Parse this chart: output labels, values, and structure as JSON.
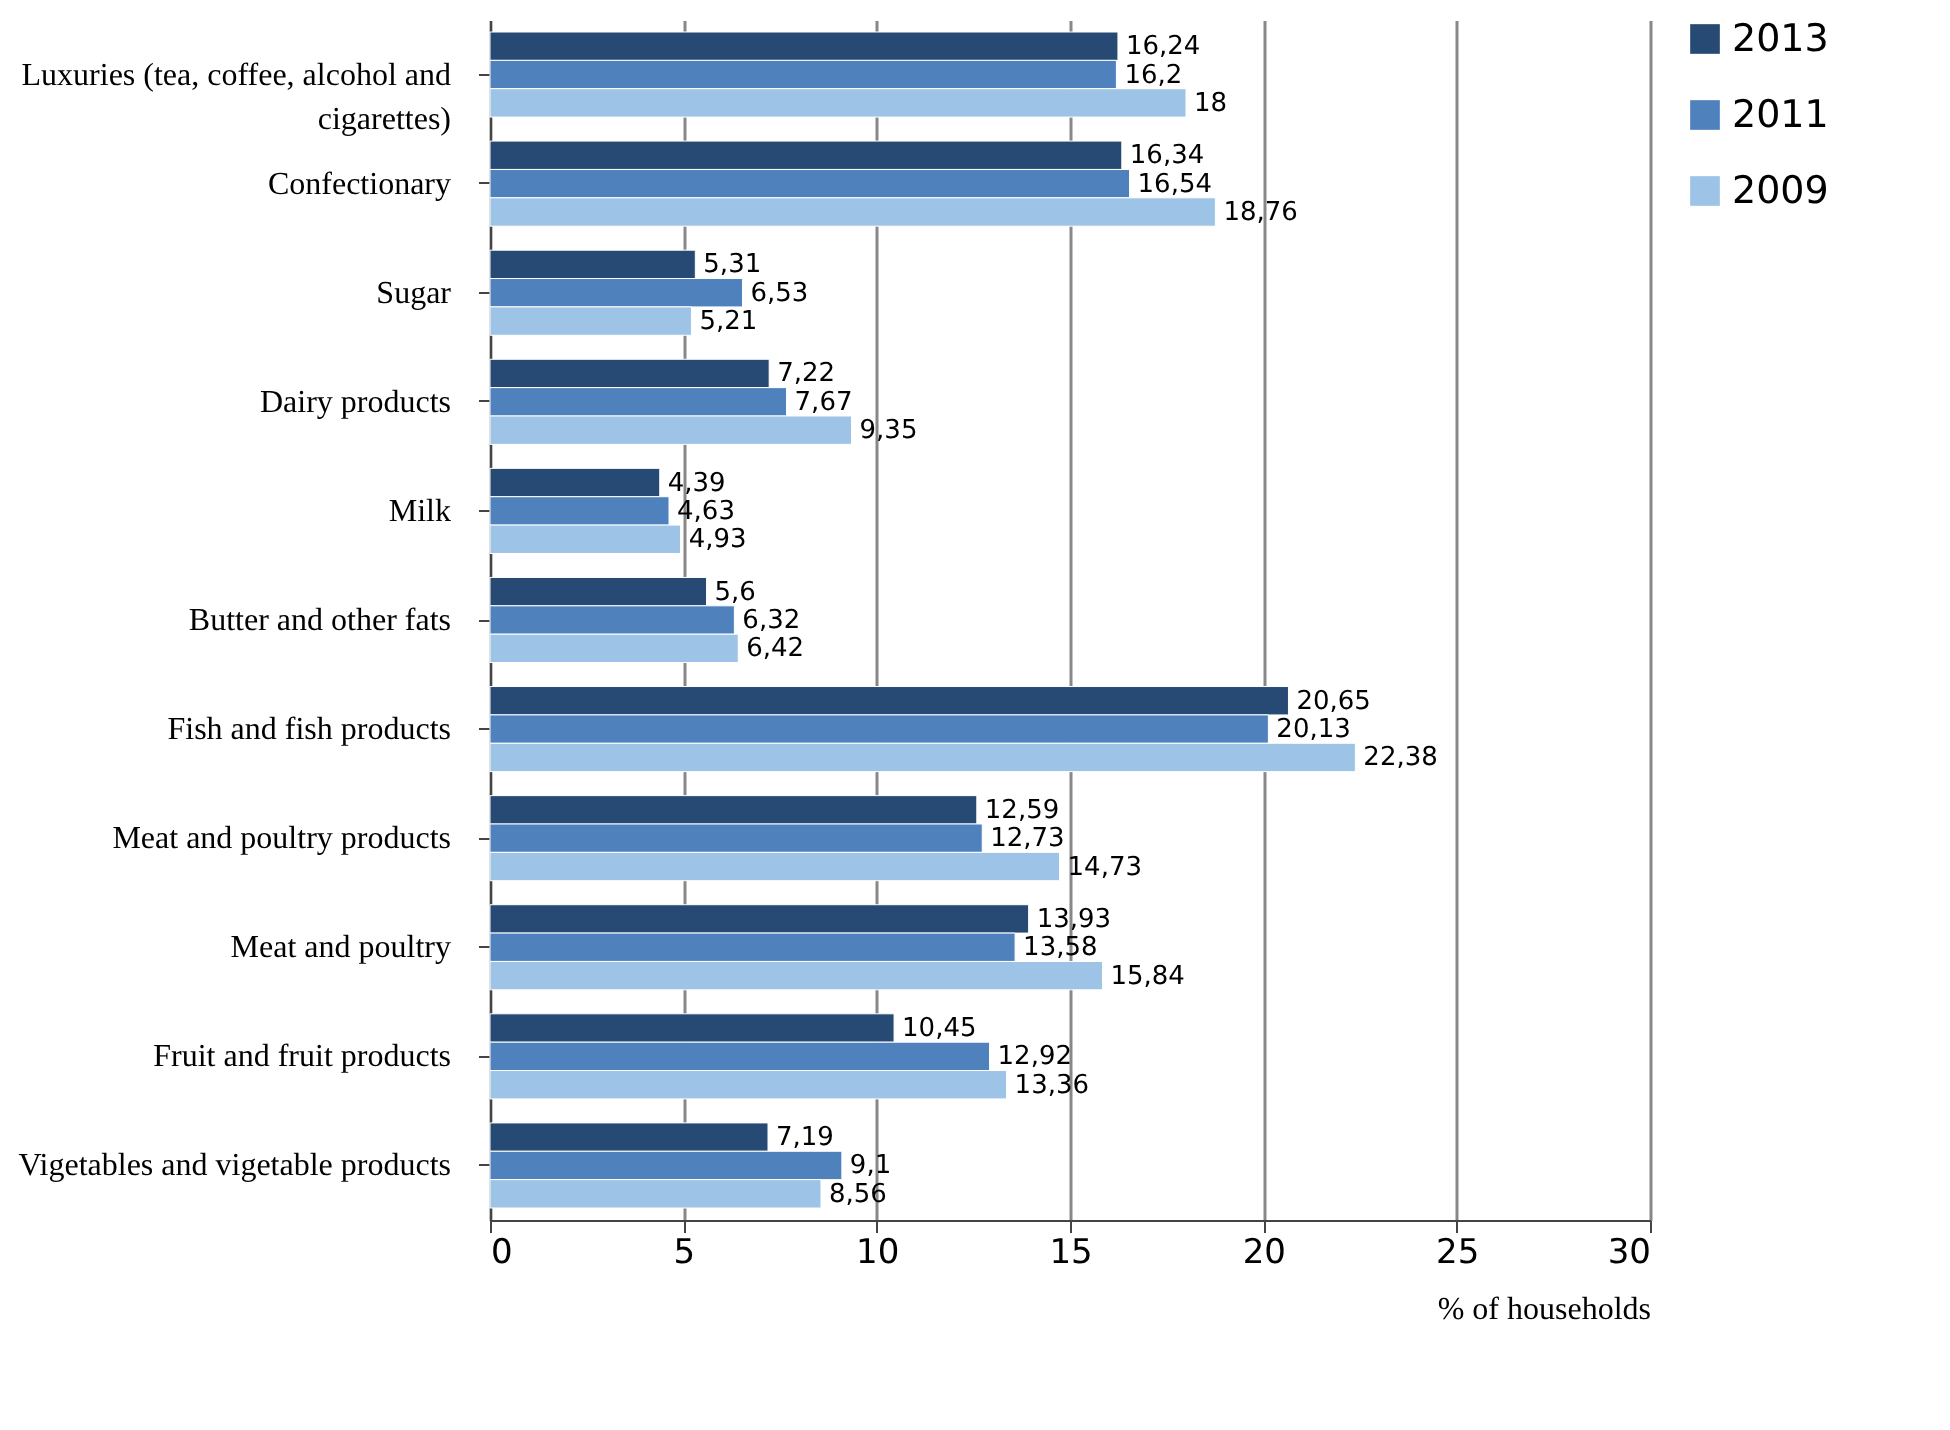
{
  "chart_data": {
    "type": "bar",
    "orientation": "horizontal",
    "xlabel": "% of households",
    "categories": [
      "Luxuries (tea, coffee, alcohol and cigarettes)",
      "Confectionary",
      "Sugar",
      "Dairy products",
      "Milk",
      "Butter and other fats",
      "Fish and fish products",
      "Meat and poultry products",
      "Meat and poultry",
      "Fruit and fruit products",
      "Vigetables and vigetable products"
    ],
    "series": [
      {
        "name": "2013",
        "color": "#264a73",
        "values": [
          16.24,
          16.34,
          5.31,
          7.22,
          4.39,
          5.6,
          20.65,
          12.59,
          13.93,
          10.45,
          7.19
        ],
        "value_labels": [
          "16,24",
          "16,34",
          "5,31",
          "7,22",
          "4,39",
          "5,6",
          "20,65",
          "12,59",
          "13,93",
          "10,45",
          "7,19"
        ]
      },
      {
        "name": "2011",
        "color": "#4f81bd",
        "values": [
          16.2,
          16.54,
          6.53,
          7.67,
          4.63,
          6.32,
          20.13,
          12.73,
          13.58,
          12.92,
          9.1
        ],
        "value_labels": [
          "16,2",
          "16,54",
          "6,53",
          "7,67",
          "4,63",
          "6,32",
          "20,13",
          "12,73",
          "13,58",
          "12,92",
          "9,1"
        ]
      },
      {
        "name": "2009",
        "color": "#9dc3e6",
        "values": [
          18,
          18.76,
          5.21,
          9.35,
          4.93,
          6.42,
          22.38,
          14.73,
          15.84,
          13.36,
          8.56
        ],
        "value_labels": [
          "18",
          "18,76",
          "5,21",
          "9,35",
          "4,93",
          "6,42",
          "22,38",
          "14,73",
          "15,84",
          "13,36",
          "8,56"
        ]
      }
    ],
    "xlim": [
      0,
      30
    ],
    "xticks": [
      0,
      5,
      10,
      15,
      20,
      25,
      30
    ],
    "grid": "x",
    "legend": "right"
  }
}
